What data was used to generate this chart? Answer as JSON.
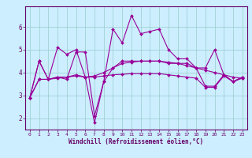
{
  "title": "",
  "xlabel": "Windchill (Refroidissement éolien,°C)",
  "ylabel": "",
  "bg_color": "#cceeff",
  "line_color": "#990099",
  "grid_color": "#99cccc",
  "xlim": [
    -0.5,
    23.5
  ],
  "ylim": [
    1.5,
    6.9
  ],
  "xticks": [
    0,
    1,
    2,
    3,
    4,
    5,
    6,
    7,
    8,
    9,
    10,
    11,
    12,
    13,
    14,
    15,
    16,
    17,
    18,
    19,
    20,
    21,
    22,
    23
  ],
  "yticks": [
    2,
    3,
    4,
    5,
    6
  ],
  "series": [
    [
      2.9,
      4.5,
      3.7,
      5.1,
      4.8,
      5.0,
      3.8,
      1.8,
      3.6,
      5.9,
      5.3,
      6.5,
      5.7,
      5.8,
      5.9,
      5.0,
      4.6,
      4.6,
      4.2,
      4.2,
      5.0,
      3.9,
      3.6,
      3.8
    ],
    [
      2.9,
      4.5,
      3.7,
      3.8,
      3.7,
      4.9,
      4.9,
      2.1,
      3.6,
      4.2,
      4.5,
      4.5,
      4.5,
      4.5,
      4.5,
      4.4,
      4.4,
      4.4,
      4.2,
      3.4,
      3.4,
      3.9,
      3.6,
      3.8
    ],
    [
      2.9,
      3.7,
      3.7,
      3.8,
      3.8,
      3.85,
      3.8,
      3.85,
      4.0,
      4.2,
      4.4,
      4.45,
      4.5,
      4.5,
      4.5,
      4.45,
      4.4,
      4.3,
      4.2,
      4.1,
      4.0,
      3.9,
      3.8,
      3.75
    ],
    [
      2.9,
      3.7,
      3.7,
      3.75,
      3.8,
      3.9,
      3.8,
      3.8,
      3.85,
      3.9,
      3.92,
      3.95,
      3.95,
      3.95,
      3.95,
      3.9,
      3.85,
      3.8,
      3.75,
      3.35,
      3.35,
      3.85,
      3.6,
      3.75
    ]
  ]
}
